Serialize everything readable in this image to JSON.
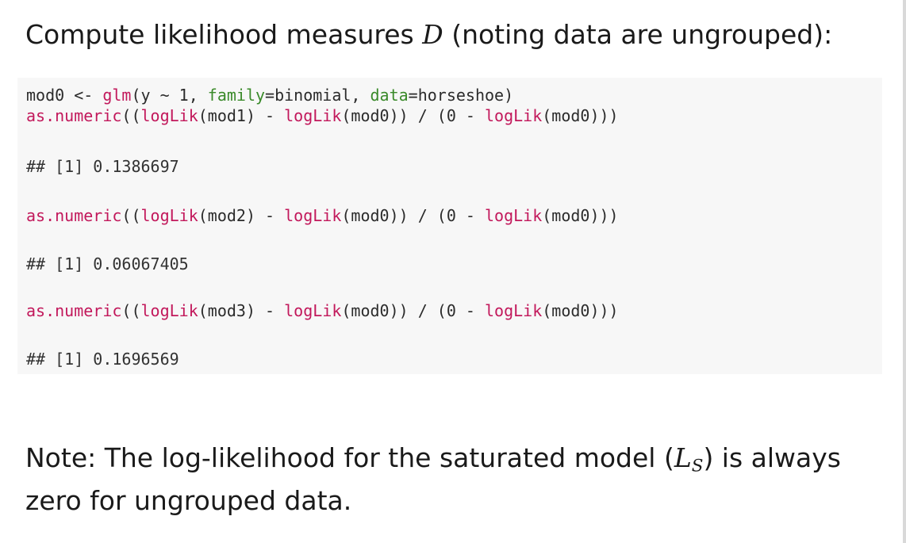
{
  "heading": {
    "before": "Compute likelihood measures ",
    "symbol": "D",
    "after": " (noting data are ungrouped):"
  },
  "code": {
    "line1": {
      "a": "mod0 <- ",
      "glm": "glm",
      "b": "(y ~ 1, ",
      "family_arg": "family",
      "c": "=binomial, ",
      "data_arg": "data",
      "d": "=horseshoe)"
    },
    "blocks": [
      {
        "prefix": "as.numeric",
        "p1": "((",
        "ll1": "logLik",
        "m1": "(mod1) - ",
        "ll2": "logLik",
        "m2": "(mod0)) / (0 - ",
        "ll3": "logLik",
        "m3": "(mod0)))",
        "output": "## [1] 0.1386697"
      },
      {
        "prefix": "as.numeric",
        "p1": "((",
        "ll1": "logLik",
        "m1": "(mod2) - ",
        "ll2": "logLik",
        "m2": "(mod0)) / (0 - ",
        "ll3": "logLik",
        "m3": "(mod0)))",
        "output": "## [1] 0.06067405"
      },
      {
        "prefix": "as.numeric",
        "p1": "((",
        "ll1": "logLik",
        "m1": "(mod3) - ",
        "ll2": "logLik",
        "m2": "(mod0)) / (0 - ",
        "ll3": "logLik",
        "m3": "(mod0)))",
        "output": "## [1] 0.1696569"
      }
    ]
  },
  "note": {
    "before": "Note: The log-likelihood for the saturated model (",
    "symbol": "L",
    "subscript": "S",
    "after": ") is always zero for ungrouped data."
  },
  "colors": {
    "function": "#c2185b",
    "argument": "#3a8a2a",
    "code_background": "#f7f7f7"
  }
}
